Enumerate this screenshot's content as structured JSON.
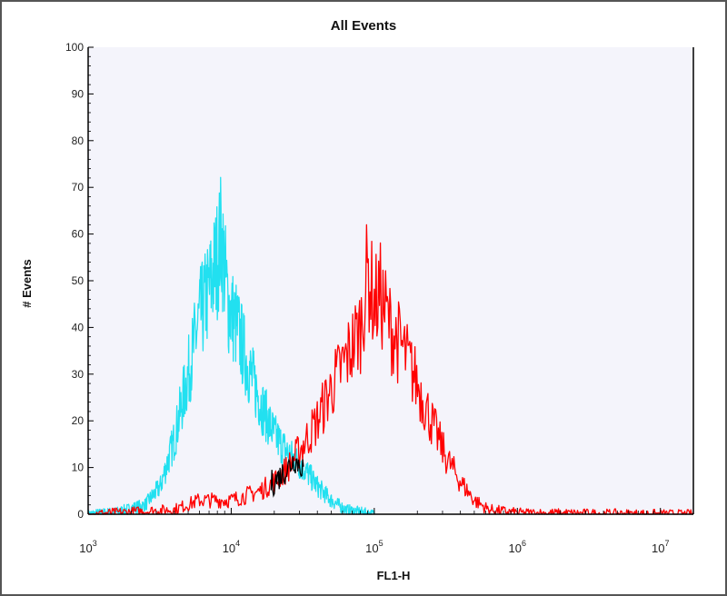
{
  "chart_data": {
    "type": "line",
    "title": "All Events",
    "xlabel": "FL1-H",
    "ylabel": "# Events",
    "x_scale": "log",
    "xlim": [
      1000,
      17000000
    ],
    "ylim": [
      0,
      100
    ],
    "y_ticks": [
      0,
      10,
      20,
      30,
      40,
      50,
      60,
      70,
      80,
      90,
      100
    ],
    "x_ticks": [
      {
        "value": 1000,
        "base": "10",
        "exp": "3"
      },
      {
        "value": 10000,
        "base": "10",
        "exp": "4"
      },
      {
        "value": 100000,
        "base": "10",
        "exp": "5"
      },
      {
        "value": 1000000,
        "base": "10",
        "exp": "6"
      },
      {
        "value": 10000000,
        "base": "10",
        "exp": "7"
      }
    ],
    "grid": false,
    "colors": {
      "background": "#f4f4fb",
      "axis": "#000000",
      "series_cyan": "#22e0f0",
      "series_red": "#ff0000",
      "overlap": "#000000"
    },
    "series": [
      {
        "color": "#22e0f0",
        "x": [
          1000,
          1600,
          2500,
          3200,
          4000,
          5000,
          6000,
          7000,
          8000,
          8500,
          9500,
          11000,
          13000,
          16000,
          20000,
          25000,
          32000,
          40000,
          50000,
          63000,
          80000,
          100000
        ],
        "values": [
          0,
          0.5,
          2,
          6,
          16,
          30,
          42,
          48,
          55,
          60,
          45,
          40,
          32,
          24,
          17,
          13,
          10,
          6,
          3,
          1,
          0.5,
          0
        ]
      },
      {
        "color": "#ff0000",
        "x": [
          1000,
          2000,
          4000,
          6000,
          10000,
          16000,
          20000,
          25000,
          32000,
          40000,
          50000,
          63000,
          80000,
          90000,
          100000,
          110000,
          130000,
          160000,
          200000,
          250000,
          320000,
          400000,
          500000,
          630000,
          1000000,
          2000000,
          17000000
        ],
        "values": [
          0,
          0.5,
          1,
          3,
          3,
          5,
          7,
          10,
          15,
          20,
          27,
          33,
          40,
          52,
          45,
          47,
          40,
          35,
          28,
          20,
          12,
          7,
          3,
          1,
          0.3,
          0.2,
          0
        ]
      }
    ]
  }
}
